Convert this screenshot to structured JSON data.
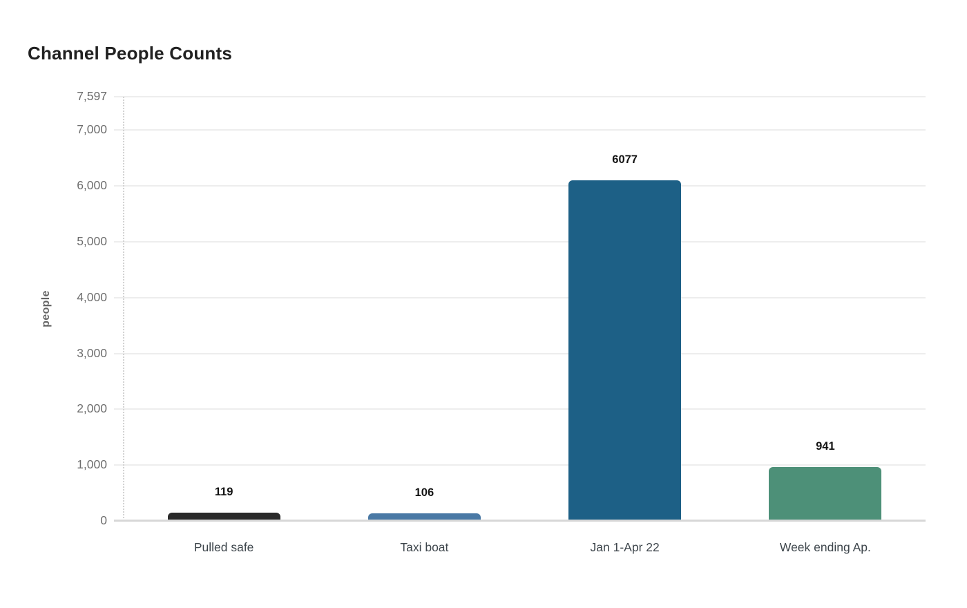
{
  "title": "Channel People Counts",
  "chart_data": {
    "type": "bar",
    "title": "Channel People Counts",
    "xlabel": "",
    "ylabel": "people",
    "categories": [
      "Pulled safe",
      "Taxi boat",
      "Jan 1-Apr 22",
      "Week ending Ap."
    ],
    "values": [
      119,
      106,
      6077,
      941
    ],
    "value_labels": [
      "119",
      "106",
      "6077",
      "941"
    ],
    "bar_colors": [
      "#2a2a2a",
      "#4a79a5",
      "#1d6086",
      "#4d9078"
    ],
    "bar_patterns": [
      "dots",
      "none",
      "none",
      "none"
    ],
    "ylim": [
      0,
      7597
    ],
    "yticks": [
      {
        "value": 0,
        "label": "0"
      },
      {
        "value": 1000,
        "label": "1,000"
      },
      {
        "value": 2000,
        "label": "2,000"
      },
      {
        "value": 3000,
        "label": "3,000"
      },
      {
        "value": 4000,
        "label": "4,000"
      },
      {
        "value": 5000,
        "label": "5,000"
      },
      {
        "value": 6000,
        "label": "6,000"
      },
      {
        "value": 7000,
        "label": "7,000"
      },
      {
        "value": 7597,
        "label": "7,597"
      }
    ],
    "grid": "horizontal",
    "legend": "none",
    "colors": {
      "title_text": "#212121",
      "tick_text": "#6e6e6e",
      "axis_title_text": "#636363",
      "category_text": "#3e464c",
      "value_label_text": "#141414",
      "gridline": "#ededed",
      "baseline": "#d7d7d7",
      "background": "#ffffff"
    }
  }
}
